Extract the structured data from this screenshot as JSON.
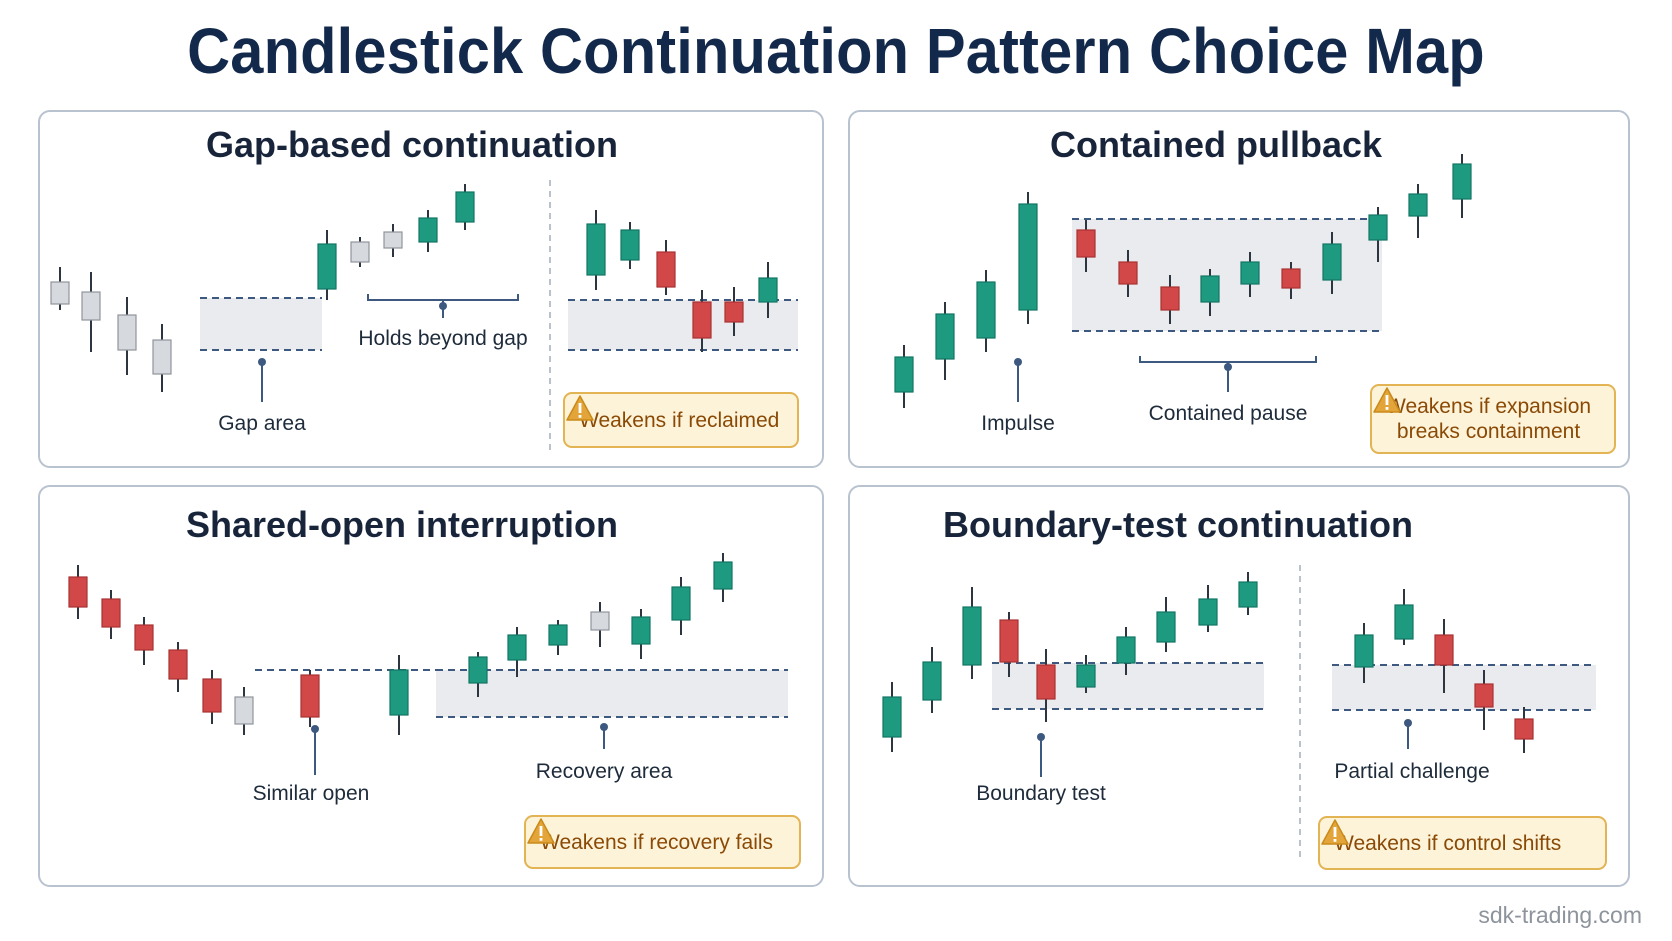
{
  "title": "Candlestick Continuation Pattern Choice Map",
  "colors": {
    "bull": "#1d9a80",
    "bear": "#d24747",
    "neutral": "#d6d9de",
    "zone": "#e9ebee",
    "dash": "#3d5980",
    "warnBg": "#fdf3d9",
    "warnBorder": "#e2b453",
    "warnText": "#8a4a06"
  },
  "panels": {
    "gap": {
      "title": "Gap-based continuation",
      "labels": {
        "gap_area": "Gap area",
        "holds": "Holds beyond gap"
      },
      "warning": "Weakens if reclaimed"
    },
    "pullback": {
      "title": "Contained pullback",
      "labels": {
        "impulse": "Impulse",
        "pause": "Contained pause"
      },
      "warning_line1": "Weakens if expansion",
      "warning_line2": "breaks containment"
    },
    "shared": {
      "title": "Shared-open interruption",
      "labels": {
        "similar": "Similar open",
        "recovery": "Recovery area"
      },
      "warning": "Weakens if recovery fails"
    },
    "boundary": {
      "title": "Boundary-test continuation",
      "labels": {
        "test": "Boundary test",
        "partial": "Partial challenge"
      },
      "warning": "Weakens if control shifts"
    }
  },
  "watermark": "sdk-trading.com"
}
